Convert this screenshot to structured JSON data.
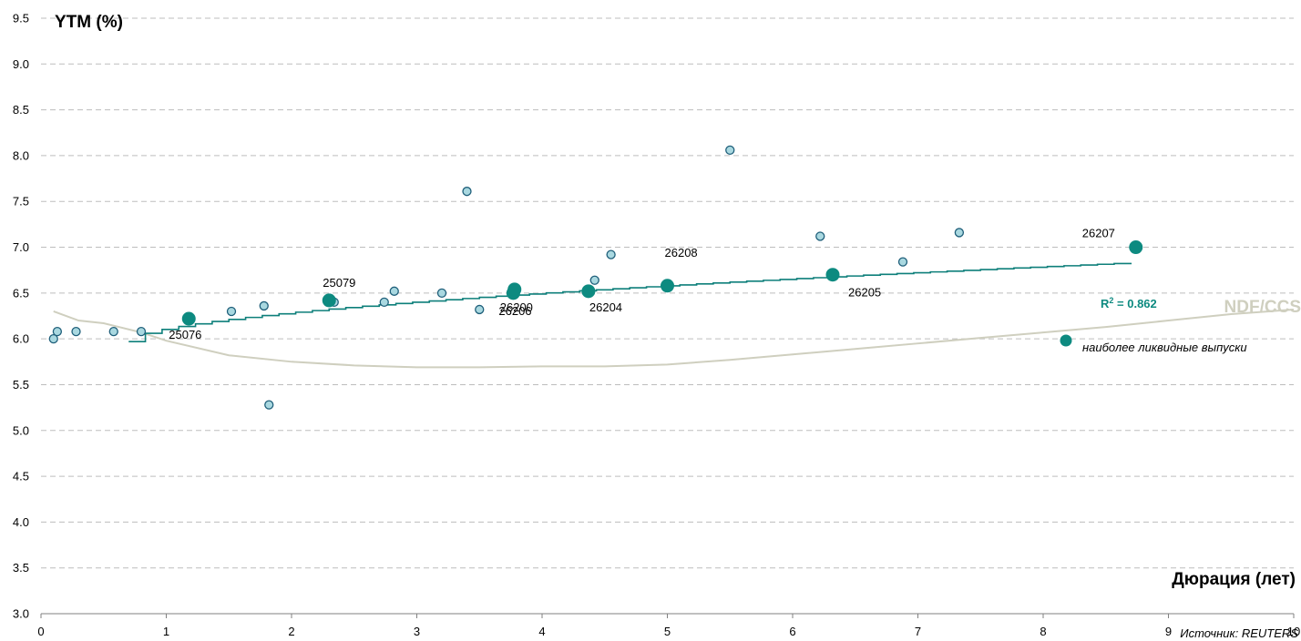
{
  "chart_data": {
    "type": "scatter",
    "title": "",
    "ylabel": "YTM (%)",
    "xlabel": "Дюрация (лет)",
    "xlim": [
      0,
      10
    ],
    "ylim": [
      3.0,
      9.5
    ],
    "x_ticks": [
      "0",
      "1",
      "2",
      "3",
      "4",
      "5",
      "6",
      "7",
      "8",
      "9",
      "10"
    ],
    "y_ticks": [
      "3.0",
      "3.5",
      "4.0",
      "4.5",
      "5.0",
      "5.5",
      "6.0",
      "6.5",
      "7.0",
      "7.5",
      "8.0",
      "8.5",
      "9.0",
      "9.5"
    ],
    "grid": true,
    "colors": {
      "liquid": "#0d8a80",
      "other_fill": "#a9d8e0",
      "other_stroke": "#1f5f7a",
      "trend": "#0d7f7a",
      "ndf": "#cfcfbf"
    },
    "series": [
      {
        "kind": "other",
        "points": [
          {
            "x": 0.1,
            "y": 6.0
          },
          {
            "x": 0.13,
            "y": 6.08
          },
          {
            "x": 0.28,
            "y": 6.08
          },
          {
            "x": 0.58,
            "y": 6.08
          },
          {
            "x": 0.8,
            "y": 6.08
          },
          {
            "x": 1.52,
            "y": 6.3
          },
          {
            "x": 1.78,
            "y": 6.36
          },
          {
            "x": 1.82,
            "y": 5.28
          },
          {
            "x": 2.34,
            "y": 6.4
          },
          {
            "x": 2.74,
            "y": 6.4
          },
          {
            "x": 2.82,
            "y": 6.52
          },
          {
            "x": 3.2,
            "y": 6.5
          },
          {
            "x": 3.4,
            "y": 7.61
          },
          {
            "x": 3.5,
            "y": 6.32
          },
          {
            "x": 4.42,
            "y": 6.64
          },
          {
            "x": 4.55,
            "y": 6.92
          },
          {
            "x": 5.5,
            "y": 8.06
          },
          {
            "x": 6.22,
            "y": 7.12
          },
          {
            "x": 6.88,
            "y": 6.84
          },
          {
            "x": 7.33,
            "y": 7.16
          }
        ]
      },
      {
        "kind": "liquid",
        "name": "наиболее ликвидные выпуски",
        "points": [
          {
            "x": 1.18,
            "y": 6.22,
            "label": "25076"
          },
          {
            "x": 2.3,
            "y": 6.42,
            "label": "25079"
          },
          {
            "x": 3.77,
            "y": 6.5,
            "label": "26206"
          },
          {
            "x": 3.78,
            "y": 6.54,
            "label": "26200"
          },
          {
            "x": 4.37,
            "y": 6.52,
            "label": "26204"
          },
          {
            "x": 5.0,
            "y": 6.58,
            "label": "26208"
          },
          {
            "x": 6.32,
            "y": 6.7,
            "label": "26205"
          },
          {
            "x": 8.74,
            "y": 7.0,
            "label": "26207"
          }
        ]
      }
    ],
    "trendline": {
      "x": [
        0.7,
        8.7
      ],
      "y": [
        5.97,
        6.83
      ],
      "r2_label": "R",
      "r2_sup": "2",
      "r2_value": " = 0.862"
    },
    "ndf_curve": {
      "name": "NDF/CCS",
      "x": [
        0.1,
        0.3,
        0.5,
        0.8,
        1.0,
        1.5,
        2.0,
        2.5,
        3.0,
        3.5,
        4.0,
        4.5,
        5.0,
        5.5,
        6.0,
        6.5,
        7.0,
        7.5,
        8.0,
        8.5,
        9.0,
        9.5,
        10.0
      ],
      "y": [
        6.3,
        6.2,
        6.17,
        6.07,
        5.98,
        5.82,
        5.75,
        5.71,
        5.69,
        5.69,
        5.7,
        5.7,
        5.72,
        5.77,
        5.83,
        5.89,
        5.95,
        6.01,
        6.07,
        6.13,
        6.2,
        6.27,
        6.32
      ]
    },
    "legend": {
      "position": "right",
      "label": "наиболее ликвидные выпуски"
    },
    "source": "Источник: REUTERS"
  }
}
